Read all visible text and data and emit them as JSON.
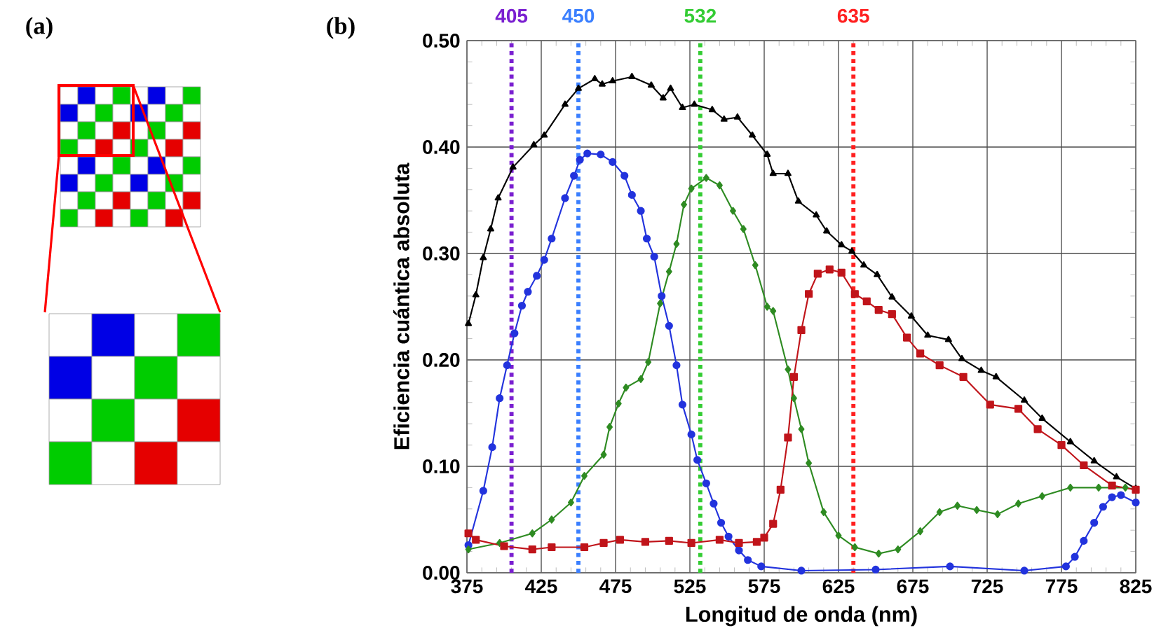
{
  "chart_data": {
    "type": "line",
    "xlabel": "Longitud de onda (nm)",
    "ylabel": "Eficiencia cuántica absoluta",
    "xlim": [
      375,
      825
    ],
    "xticks": [
      375,
      425,
      475,
      525,
      575,
      625,
      675,
      725,
      775,
      825
    ],
    "ylim": [
      0,
      0.5
    ],
    "yticks": [
      {
        "value": 0,
        "label": "0.00"
      },
      {
        "value": 0.1,
        "label": "0.10"
      },
      {
        "value": 0.2,
        "label": "0.20"
      },
      {
        "value": 0.3,
        "label": "0.30"
      },
      {
        "value": 0.4,
        "label": "0.40"
      },
      {
        "value": 0.5,
        "label": "0.50"
      }
    ],
    "grid": true,
    "series": [
      {
        "color": "#000000",
        "marker": "triangle",
        "x": [
          376,
          381,
          386,
          391,
          396,
          406,
          420,
          427,
          441,
          450,
          461,
          466,
          473,
          486,
          499,
          507,
          512,
          520,
          528,
          540,
          548,
          557,
          567,
          577,
          581,
          591,
          598,
          610,
          617,
          627,
          634,
          642,
          651,
          661,
          674,
          685,
          699,
          708,
          721,
          731,
          750,
          762,
          781,
          797,
          812,
          825
        ],
        "values": [
          0.234,
          0.261,
          0.296,
          0.323,
          0.352,
          0.381,
          0.402,
          0.411,
          0.44,
          0.455,
          0.464,
          0.459,
          0.462,
          0.466,
          0.458,
          0.446,
          0.455,
          0.437,
          0.44,
          0.435,
          0.426,
          0.428,
          0.411,
          0.393,
          0.375,
          0.375,
          0.349,
          0.336,
          0.321,
          0.308,
          0.302,
          0.289,
          0.28,
          0.259,
          0.241,
          0.223,
          0.219,
          0.201,
          0.19,
          0.184,
          0.162,
          0.145,
          0.123,
          0.105,
          0.09,
          0.079
        ]
      },
      {
        "color": "#2233dd",
        "marker": "circle",
        "x": [
          376,
          386,
          392,
          397,
          402,
          407,
          412,
          416,
          422,
          427,
          432,
          441,
          447,
          451,
          456,
          465,
          473,
          481,
          486,
          492,
          496,
          501,
          506,
          511,
          516,
          520,
          526,
          530,
          536,
          541,
          546,
          551,
          558,
          564,
          573,
          600,
          650,
          700,
          750,
          778,
          784,
          790,
          797,
          803,
          809,
          815,
          825
        ],
        "values": [
          0.026,
          0.077,
          0.118,
          0.164,
          0.195,
          0.225,
          0.251,
          0.264,
          0.279,
          0.294,
          0.314,
          0.352,
          0.373,
          0.388,
          0.394,
          0.393,
          0.386,
          0.373,
          0.355,
          0.34,
          0.314,
          0.297,
          0.26,
          0.232,
          0.195,
          0.158,
          0.13,
          0.106,
          0.084,
          0.065,
          0.047,
          0.034,
          0.021,
          0.012,
          0.006,
          0.002,
          0.003,
          0.006,
          0.002,
          0.006,
          0.015,
          0.03,
          0.047,
          0.062,
          0.071,
          0.073,
          0.066
        ]
      },
      {
        "color": "#2e8b22",
        "marker": "diamond",
        "x": [
          376,
          397,
          419,
          432,
          445,
          454,
          467,
          471,
          477,
          482,
          492,
          497,
          505,
          511,
          516,
          521,
          526,
          536,
          545,
          554,
          561,
          569,
          577,
          581,
          591,
          595,
          600,
          605,
          615,
          625,
          636,
          652,
          665,
          680,
          693,
          705,
          718,
          732,
          746,
          762,
          781,
          800,
          818,
          825
        ],
        "values": [
          0.022,
          0.028,
          0.037,
          0.05,
          0.066,
          0.091,
          0.111,
          0.137,
          0.159,
          0.174,
          0.182,
          0.198,
          0.253,
          0.283,
          0.309,
          0.346,
          0.361,
          0.371,
          0.364,
          0.34,
          0.323,
          0.289,
          0.25,
          0.246,
          0.191,
          0.164,
          0.135,
          0.103,
          0.057,
          0.035,
          0.024,
          0.018,
          0.022,
          0.039,
          0.057,
          0.063,
          0.059,
          0.055,
          0.065,
          0.072,
          0.08,
          0.08,
          0.08,
          0.078
        ]
      },
      {
        "color": "#c0141a",
        "marker": "square",
        "x": [
          376,
          381,
          400,
          419,
          432,
          454,
          467,
          478,
          495,
          511,
          526,
          545,
          558,
          570,
          575,
          581,
          586,
          591,
          595,
          600,
          605,
          611,
          619,
          627,
          636,
          644,
          652,
          661,
          671,
          680,
          693,
          709,
          727,
          746,
          759,
          775,
          790,
          809,
          825
        ],
        "values": [
          0.037,
          0.031,
          0.025,
          0.022,
          0.024,
          0.024,
          0.028,
          0.031,
          0.029,
          0.03,
          0.028,
          0.031,
          0.028,
          0.029,
          0.033,
          0.046,
          0.078,
          0.127,
          0.184,
          0.228,
          0.262,
          0.281,
          0.285,
          0.282,
          0.262,
          0.255,
          0.247,
          0.243,
          0.221,
          0.206,
          0.195,
          0.184,
          0.158,
          0.154,
          0.135,
          0.12,
          0.101,
          0.082,
          0.078
        ]
      }
    ],
    "ref_lines": [
      {
        "axis": "x",
        "value": 405,
        "label": "405",
        "color": "#7a1fd0",
        "line_style": "dotted"
      },
      {
        "axis": "x",
        "value": 450,
        "label": "450",
        "color": "#3a7fff",
        "line_style": "dotted"
      },
      {
        "axis": "x",
        "value": 532,
        "label": "532",
        "color": "#33cc33",
        "line_style": "dotted"
      },
      {
        "axis": "x",
        "value": 635,
        "label": "635",
        "color": "#ff2020",
        "line_style": "dotted"
      }
    ],
    "annotations": [
      "(a)",
      "(b)"
    ]
  }
}
